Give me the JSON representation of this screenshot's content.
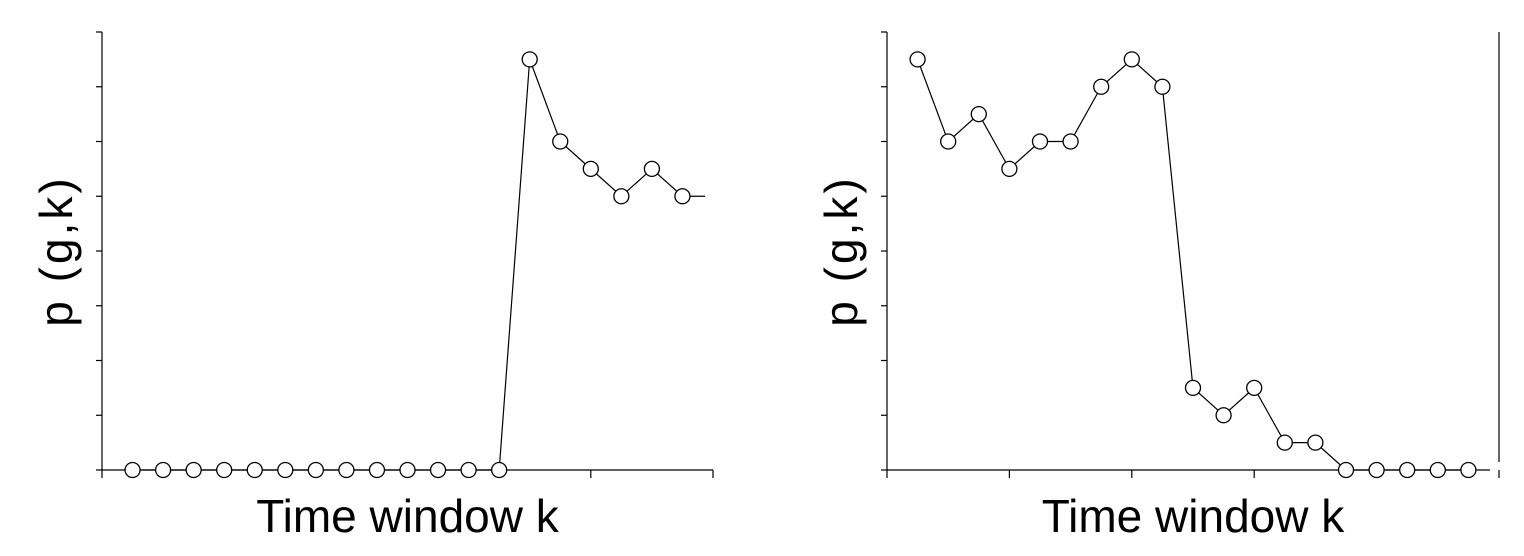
{
  "chart_data": [
    {
      "type": "line",
      "xlabel": "Time window k",
      "ylabel": "p (g,k)",
      "xlim": [
        0,
        20
      ],
      "ylim": [
        0,
        16
      ],
      "x_major_ticks": [
        0,
        4,
        8,
        12,
        16,
        20
      ],
      "y_ticks": [
        0,
        2,
        4,
        6,
        8,
        10,
        12,
        14,
        16
      ],
      "grid": false,
      "marker": "open-circle",
      "series": [
        {
          "x": [
            1,
            2,
            3,
            4,
            5,
            6,
            7,
            8,
            9,
            10,
            11,
            12,
            13,
            14,
            15,
            16,
            17,
            18,
            19
          ],
          "y": [
            0,
            0,
            0,
            0,
            0,
            0,
            0,
            0,
            0,
            0,
            0,
            0,
            0,
            15,
            12,
            11,
            10,
            11,
            10
          ]
        }
      ],
      "trailing_segment_to": {
        "x": 20,
        "y": 10
      }
    },
    {
      "type": "line",
      "xlabel": "Time window k",
      "ylabel": "p (g,k)",
      "xlim": [
        0,
        20
      ],
      "ylim": [
        0,
        16
      ],
      "x_major_ticks": [
        0,
        4,
        8,
        12,
        16,
        20
      ],
      "y_ticks": [
        0,
        2,
        4,
        6,
        8,
        10,
        12,
        14,
        16
      ],
      "grid": false,
      "marker": "open-circle",
      "series": [
        {
          "x": [
            1,
            2,
            3,
            4,
            5,
            6,
            7,
            8,
            9,
            10,
            11,
            12,
            13,
            14,
            15,
            16,
            17,
            18,
            19
          ],
          "y": [
            15,
            12,
            13,
            11,
            12,
            12,
            14,
            15,
            14,
            3,
            2,
            3,
            1,
            1,
            0,
            0,
            0,
            0,
            0
          ]
        }
      ]
    }
  ]
}
